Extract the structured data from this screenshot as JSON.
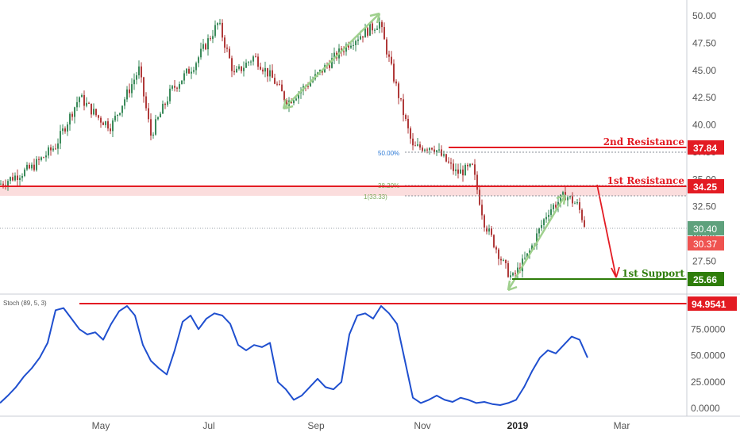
{
  "chart_data": [
    {
      "type": "candlestick",
      "title": "",
      "x_ticks": [
        "May",
        "Jul",
        "Sep",
        "Nov",
        "2019",
        "Mar"
      ],
      "y_ticks": [
        "50.00",
        "47.50",
        "45.00",
        "42.50",
        "40.00",
        "37.50",
        "35.00",
        "32.50",
        "30.00",
        "27.50",
        "25.00"
      ],
      "ylim": [
        24.5,
        50.9
      ],
      "grid": false,
      "ohlc_approx": [
        {
          "t": "Feb",
          "close": 34.5
        },
        {
          "t": "Mar",
          "close": 36.5
        },
        {
          "t": "Apr",
          "close": 39.0
        },
        {
          "t": "Apr-mid",
          "close": 43.0
        },
        {
          "t": "May",
          "close": 41.0
        },
        {
          "t": "May-mid",
          "close": 45.0
        },
        {
          "t": "Jun",
          "close": 39.0
        },
        {
          "t": "Jun-mid",
          "close": 46.0
        },
        {
          "t": "Jul",
          "close": 49.5
        },
        {
          "t": "Jul-mid",
          "close": 44.5
        },
        {
          "t": "Aug",
          "close": 46.0
        },
        {
          "t": "Aug-end",
          "close": 42.0
        },
        {
          "t": "Sep",
          "close": 44.0
        },
        {
          "t": "Oct-mid",
          "close": 49.5
        },
        {
          "t": "Oct-end",
          "close": 44.0
        },
        {
          "t": "Nov",
          "close": 38.0
        },
        {
          "t": "Nov-end",
          "close": 37.0
        },
        {
          "t": "Dec",
          "close": 33.0
        },
        {
          "t": "Dec-end",
          "close": 26.0
        },
        {
          "t": "Jan",
          "close": 29.0
        },
        {
          "t": "Jan-end",
          "close": 33.5
        },
        {
          "t": "Feb",
          "close": 30.4
        }
      ],
      "levels": [
        {
          "label": "2nd Resistance",
          "value": "37.84",
          "color": "#e31b23"
        },
        {
          "label": "1st Resistance",
          "value": "34.25",
          "color": "#e31b23"
        },
        {
          "label": "1st Support",
          "value": "25.66",
          "color": "#2e7d0a"
        }
      ],
      "fib_labels": [
        "50.00%",
        "38.20%",
        "1(33.33)"
      ],
      "price_tags": [
        {
          "value": "30.40",
          "color": "#5ea17c"
        },
        {
          "value": "30.37",
          "color": "#ef5350"
        }
      ]
    },
    {
      "type": "line",
      "legend_text": "Stoch (89, 5, 3)",
      "y_ticks": [
        "100.0000",
        "75.0000",
        "50.0000",
        "25.0000",
        "0.0000"
      ],
      "ylim": [
        -5,
        100
      ],
      "series": [
        {
          "color": "#1f4fcf",
          "values": [
            5,
            12,
            20,
            30,
            38,
            48,
            62,
            93,
            95,
            85,
            75,
            70,
            72,
            65,
            80,
            92,
            97,
            88,
            60,
            45,
            38,
            32,
            55,
            82,
            88,
            75,
            85,
            90,
            88,
            80,
            60,
            55,
            60,
            58,
            62,
            25,
            18,
            8,
            12,
            20,
            28,
            20,
            18,
            25,
            70,
            88,
            90,
            85,
            97,
            90,
            80,
            45,
            10,
            5,
            8,
            12,
            8,
            6,
            10,
            8,
            5,
            6,
            4,
            3,
            5,
            8,
            20,
            35,
            48,
            55,
            52,
            60,
            68,
            65,
            48
          ]
        }
      ],
      "level": {
        "value": "94.9541",
        "color": "#e31b23"
      }
    }
  ]
}
